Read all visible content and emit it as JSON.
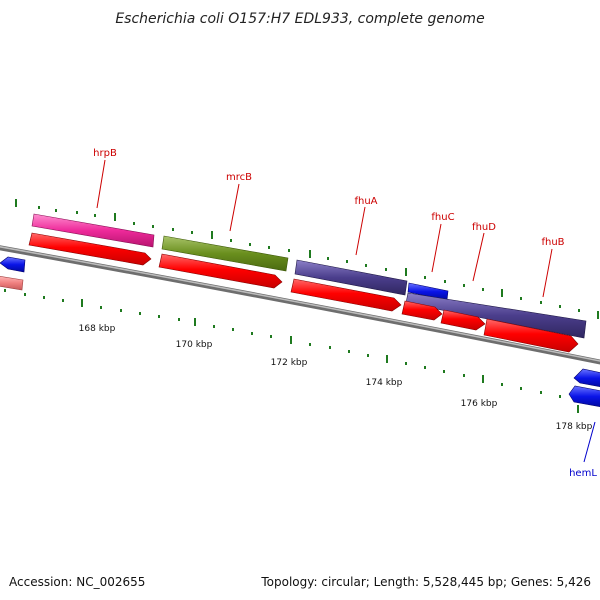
{
  "title": "Escherichia coli O157:H7 EDL933, complete genome",
  "footer": {
    "accession": "Accession: NC_002655",
    "summary": "Topology: circular; Length: 5,528,445 bp; Genes: 5,426"
  },
  "colors": {
    "backbone": "#8f8f8f",
    "tick": "#1f7a1f",
    "label_red": "#cc0000",
    "label_blue": "#0000cc"
  },
  "ticks": [
    "168 kbp",
    "170 kbp",
    "172 kbp",
    "174 kbp",
    "176 kbp",
    "178 kbp"
  ],
  "gene_labels": [
    "hrpB",
    "mrcB",
    "fhuA",
    "fhuC",
    "fhuD",
    "fhuB",
    "hemL"
  ],
  "features": [
    {
      "name": "hrpB",
      "color": "#ee2a9a",
      "strand": "forward"
    },
    {
      "name": "mrcB",
      "color": "#6a8f1e",
      "strand": "forward"
    },
    {
      "name": "fhuA",
      "color": "#4b3e8c",
      "strand": "forward"
    },
    {
      "name": "fhuC",
      "color": "#0a14d8",
      "strand": "forward"
    },
    {
      "name": "fhuD",
      "color": "#4b3e8c",
      "strand": "forward"
    },
    {
      "name": "fhuB",
      "color": "#4b3e8c",
      "strand": "forward"
    },
    {
      "name": "hemL",
      "color": "#0a14e8",
      "strand": "reverse"
    }
  ]
}
